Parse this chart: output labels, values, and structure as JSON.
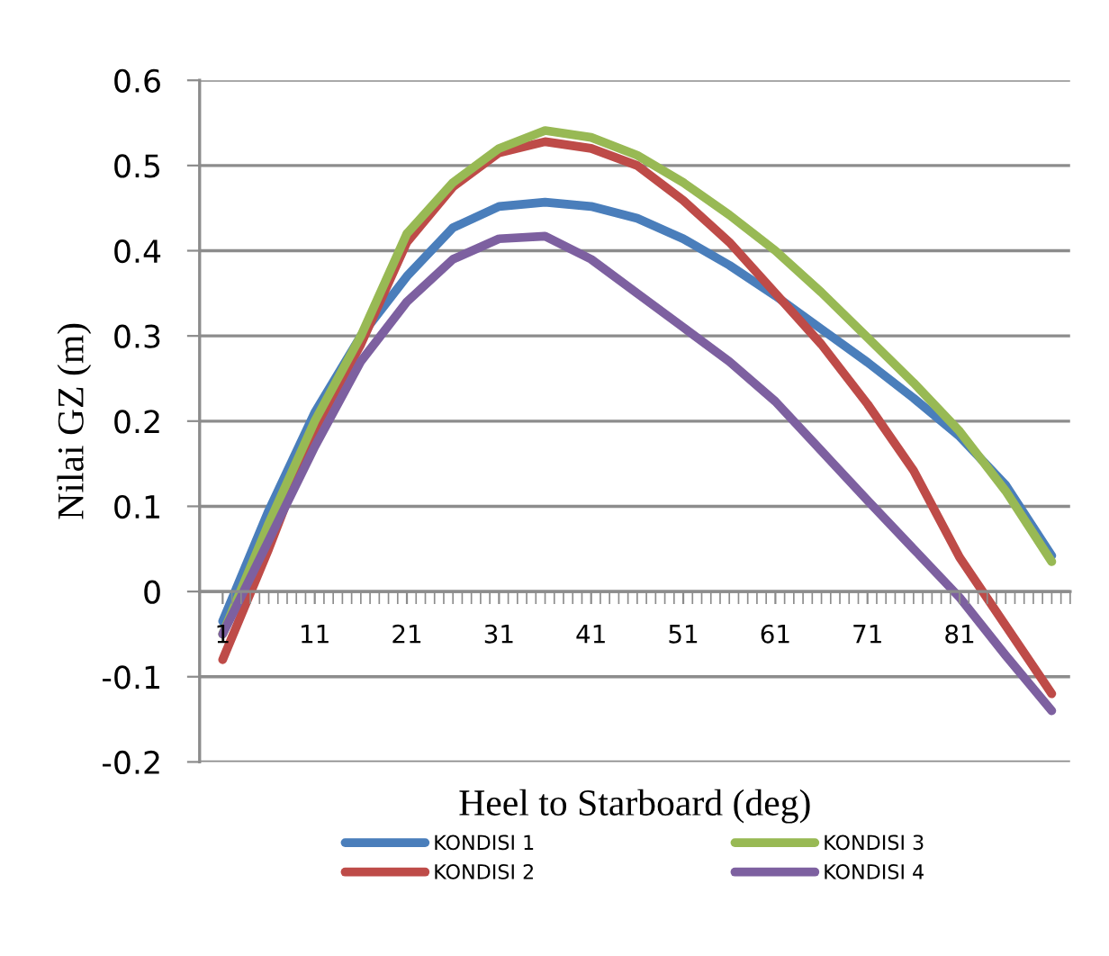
{
  "chart_data": {
    "type": "line",
    "xlabel": "Heel to Starboard (deg)",
    "ylabel": "Nilai GZ (m)",
    "x": [
      1,
      6,
      11,
      16,
      21,
      26,
      31,
      36,
      41,
      46,
      51,
      56,
      61,
      66,
      71,
      76,
      81,
      86,
      91
    ],
    "series": [
      {
        "name": "KONDISI 1",
        "color": "#4a7ebb",
        "values": [
          -0.035,
          0.095,
          0.21,
          0.3,
          0.37,
          0.427,
          0.452,
          0.457,
          0.452,
          0.438,
          0.414,
          0.383,
          0.347,
          0.308,
          0.269,
          0.227,
          0.182,
          0.125,
          0.042
        ]
      },
      {
        "name": "KONDISI 2",
        "color": "#be4b48",
        "values": [
          -0.08,
          0.05,
          0.19,
          0.29,
          0.41,
          0.475,
          0.515,
          0.528,
          0.52,
          0.5,
          0.459,
          0.41,
          0.35,
          0.29,
          0.22,
          0.142,
          0.04,
          -0.04,
          -0.12
        ]
      },
      {
        "name": "KONDISI 3",
        "color": "#98b954",
        "values": [
          -0.05,
          0.08,
          0.2,
          0.3,
          0.42,
          0.48,
          0.52,
          0.541,
          0.533,
          0.512,
          0.48,
          0.442,
          0.4,
          0.351,
          0.298,
          0.245,
          0.188,
          0.118,
          0.035
        ]
      },
      {
        "name": "KONDISI 4",
        "color": "#7d60a0",
        "values": [
          -0.05,
          0.06,
          0.17,
          0.27,
          0.34,
          0.39,
          0.414,
          0.417,
          0.39,
          0.35,
          0.31,
          0.27,
          0.223,
          0.165,
          0.107,
          0.05,
          -0.007,
          -0.075,
          -0.14
        ]
      }
    ],
    "xlim": [
      -1.5,
      93
    ],
    "xticks": [
      1,
      11,
      21,
      31,
      41,
      51,
      61,
      71,
      81
    ],
    "ylim": [
      -0.2,
      0.6
    ],
    "yticks": [
      -0.2,
      -0.1,
      0,
      0.1,
      0.2,
      0.3,
      0.4,
      0.5,
      0.6
    ],
    "grid": "y",
    "legend": "bottom",
    "marker": "none",
    "line_style": "solid"
  }
}
